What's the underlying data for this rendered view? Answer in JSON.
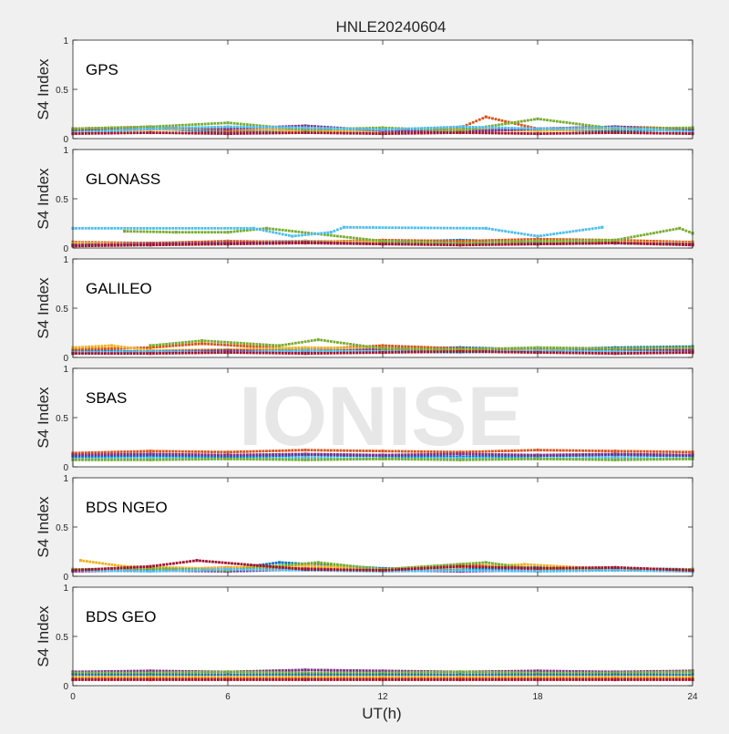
{
  "figure": {
    "title": "HNLE20240604",
    "watermark": "IONISE",
    "xlabel": "UT(h)",
    "background": "#f0f0f0",
    "axes_background": "#ffffff"
  },
  "chart_data": [
    {
      "type": "scatter",
      "panel_label": "GPS",
      "ylabel": "S4 Index",
      "xlim": [
        0,
        24
      ],
      "ylim": [
        0,
        1
      ],
      "yticks": [
        0,
        0.5,
        1
      ],
      "ytick_labels": [
        "0",
        "0.5",
        "1"
      ],
      "series": [
        {
          "color": "#0072BD",
          "x": [
            0,
            3,
            6,
            9,
            12,
            15,
            18,
            21,
            24
          ],
          "y": [
            0.08,
            0.1,
            0.07,
            0.09,
            0.08,
            0.1,
            0.09,
            0.08,
            0.09
          ]
        },
        {
          "color": "#D95319",
          "x": [
            0,
            3,
            6,
            9,
            12,
            15,
            16,
            18,
            21,
            24
          ],
          "y": [
            0.1,
            0.12,
            0.08,
            0.1,
            0.09,
            0.11,
            0.22,
            0.1,
            0.12,
            0.1
          ]
        },
        {
          "color": "#EDB120",
          "x": [
            0,
            3,
            6,
            9,
            12,
            15,
            18,
            21,
            24
          ],
          "y": [
            0.07,
            0.09,
            0.1,
            0.08,
            0.07,
            0.09,
            0.08,
            0.1,
            0.08
          ]
        },
        {
          "color": "#7E2F8E",
          "x": [
            0,
            3,
            6,
            9,
            12,
            15,
            18,
            21,
            24
          ],
          "y": [
            0.09,
            0.11,
            0.1,
            0.13,
            0.08,
            0.07,
            0.1,
            0.12,
            0.09
          ]
        },
        {
          "color": "#77AC30",
          "x": [
            0,
            3,
            6,
            9,
            12,
            15,
            18,
            21,
            24
          ],
          "y": [
            0.1,
            0.12,
            0.16,
            0.09,
            0.11,
            0.08,
            0.2,
            0.1,
            0.11
          ]
        },
        {
          "color": "#4DBEEE",
          "x": [
            0,
            3,
            6,
            9,
            12,
            15,
            18,
            21,
            24
          ],
          "y": [
            0.06,
            0.1,
            0.12,
            0.11,
            0.09,
            0.12,
            0.1,
            0.11,
            0.07
          ]
        },
        {
          "color": "#A2142F",
          "x": [
            0,
            3,
            6,
            9,
            12,
            15,
            18,
            21,
            24
          ],
          "y": [
            0.05,
            0.06,
            0.05,
            0.06,
            0.05,
            0.06,
            0.05,
            0.06,
            0.05
          ]
        }
      ]
    },
    {
      "type": "scatter",
      "panel_label": "GLONASS",
      "ylabel": "S4 Index",
      "xlim": [
        0,
        24
      ],
      "ylim": [
        0,
        1
      ],
      "yticks": [
        0,
        0.5,
        1
      ],
      "ytick_labels": [
        "0",
        "0.5",
        "1"
      ],
      "series": [
        {
          "color": "#0072BD",
          "x": [
            0,
            3,
            6,
            9,
            12,
            15,
            18,
            21,
            24
          ],
          "y": [
            0.04,
            0.05,
            0.06,
            0.07,
            0.06,
            0.08,
            0.06,
            0.05,
            0.04
          ]
        },
        {
          "color": "#D95319",
          "x": [
            0,
            3,
            6,
            9,
            12,
            15,
            18,
            21,
            24
          ],
          "y": [
            0.06,
            0.05,
            0.07,
            0.06,
            0.08,
            0.07,
            0.09,
            0.08,
            0.06
          ]
        },
        {
          "color": "#EDB120",
          "x": [
            0,
            3,
            6,
            9,
            12,
            15,
            18,
            21,
            24
          ],
          "y": [
            0.05,
            0.04,
            0.05,
            0.07,
            0.06,
            0.05,
            0.07,
            0.06,
            0.05
          ]
        },
        {
          "color": "#7E2F8E",
          "x": [
            0,
            3,
            6,
            9,
            12,
            15,
            18,
            21,
            24
          ],
          "y": [
            0.03,
            0.04,
            0.05,
            0.06,
            0.04,
            0.05,
            0.04,
            0.05,
            0.04
          ]
        },
        {
          "color": "#77AC30",
          "x": [
            2,
            4,
            6,
            7.5,
            12,
            15,
            18,
            21,
            23.5,
            24
          ],
          "y": [
            0.17,
            0.16,
            0.16,
            0.2,
            0.07,
            0.05,
            0.07,
            0.08,
            0.2,
            0.15
          ]
        },
        {
          "color": "#4DBEEE",
          "x": [
            0,
            7,
            8.5,
            10,
            10.5,
            16,
            18,
            20.5
          ],
          "y": [
            0.2,
            0.2,
            0.12,
            0.16,
            0.21,
            0.2,
            0.12,
            0.21
          ]
        },
        {
          "color": "#A2142F",
          "x": [
            0,
            3,
            6,
            9,
            12,
            15,
            18,
            21,
            24
          ],
          "y": [
            0.02,
            0.03,
            0.04,
            0.05,
            0.04,
            0.03,
            0.04,
            0.05,
            0.03
          ]
        }
      ]
    },
    {
      "type": "scatter",
      "panel_label": "GALILEO",
      "ylabel": "S4 Index",
      "xlim": [
        0,
        24
      ],
      "ylim": [
        0,
        1
      ],
      "yticks": [
        0,
        0.5,
        1
      ],
      "ytick_labels": [
        "0",
        "0.5",
        "1"
      ],
      "series": [
        {
          "color": "#0072BD",
          "x": [
            0,
            3,
            6,
            9,
            12,
            15,
            18,
            21,
            24
          ],
          "y": [
            0.07,
            0.06,
            0.08,
            0.07,
            0.09,
            0.1,
            0.08,
            0.1,
            0.11
          ]
        },
        {
          "color": "#D95319",
          "x": [
            0,
            3,
            5,
            9,
            12,
            15,
            18,
            21,
            24
          ],
          "y": [
            0.08,
            0.1,
            0.14,
            0.08,
            0.12,
            0.09,
            0.08,
            0.07,
            0.09
          ]
        },
        {
          "color": "#EDB120",
          "x": [
            0,
            1.5,
            3,
            6,
            9,
            12,
            15,
            18,
            21,
            24
          ],
          "y": [
            0.1,
            0.12,
            0.07,
            0.08,
            0.1,
            0.09,
            0.08,
            0.07,
            0.08,
            0.07
          ]
        },
        {
          "color": "#7E2F8E",
          "x": [
            0,
            3,
            6,
            9,
            12,
            15,
            18,
            21,
            24
          ],
          "y": [
            0.05,
            0.06,
            0.07,
            0.06,
            0.08,
            0.07,
            0.06,
            0.08,
            0.07
          ]
        },
        {
          "color": "#77AC30",
          "x": [
            3,
            5,
            8,
            9.5,
            12,
            15,
            18,
            21,
            24
          ],
          "y": [
            0.12,
            0.17,
            0.12,
            0.18,
            0.09,
            0.08,
            0.1,
            0.09,
            0.1
          ]
        },
        {
          "color": "#4DBEEE",
          "x": [
            0,
            3,
            6,
            9,
            12,
            15,
            18,
            21,
            24
          ],
          "y": [
            0.05,
            0.06,
            0.05,
            0.07,
            0.06,
            0.05,
            0.07,
            0.06,
            0.05
          ]
        },
        {
          "color": "#A2142F",
          "x": [
            0,
            3,
            6,
            9,
            12,
            15,
            18,
            21,
            24
          ],
          "y": [
            0.04,
            0.04,
            0.05,
            0.04,
            0.05,
            0.06,
            0.05,
            0.04,
            0.05
          ]
        }
      ]
    },
    {
      "type": "scatter",
      "panel_label": "SBAS",
      "ylabel": "S4 Index",
      "xlim": [
        0,
        24
      ],
      "ylim": [
        0,
        1
      ],
      "yticks": [
        0,
        0.5,
        1
      ],
      "ytick_labels": [
        "0",
        "0.5",
        "1"
      ],
      "series": [
        {
          "color": "#D95319",
          "x": [
            0,
            3,
            6,
            9,
            12,
            15,
            18,
            21,
            24
          ],
          "y": [
            0.14,
            0.16,
            0.15,
            0.17,
            0.16,
            0.15,
            0.17,
            0.16,
            0.15
          ]
        },
        {
          "color": "#0072BD",
          "x": [
            0,
            3,
            6,
            9,
            12,
            15,
            18,
            21,
            24
          ],
          "y": [
            0.1,
            0.11,
            0.1,
            0.12,
            0.11,
            0.1,
            0.11,
            0.12,
            0.11
          ]
        },
        {
          "color": "#4DBEEE",
          "x": [
            0,
            3,
            6,
            9,
            12,
            15,
            18,
            21,
            24
          ],
          "y": [
            0.08,
            0.09,
            0.08,
            0.09,
            0.08,
            0.09,
            0.08,
            0.09,
            0.08
          ]
        },
        {
          "color": "#77AC30",
          "x": [
            0,
            3,
            6,
            9,
            12,
            15,
            18,
            21,
            24
          ],
          "y": [
            0.07,
            0.07,
            0.08,
            0.07,
            0.08,
            0.07,
            0.08,
            0.07,
            0.08
          ]
        },
        {
          "color": "#7E2F8E",
          "x": [
            0,
            3,
            6,
            9,
            12,
            15,
            18,
            21,
            24
          ],
          "y": [
            0.12,
            0.13,
            0.12,
            0.13,
            0.12,
            0.13,
            0.12,
            0.13,
            0.12
          ]
        }
      ]
    },
    {
      "type": "scatter",
      "panel_label": "BDS NGEO",
      "ylabel": "S4 Index",
      "xlim": [
        0,
        24
      ],
      "ylim": [
        0,
        1
      ],
      "yticks": [
        0,
        0.5,
        1
      ],
      "ytick_labels": [
        "0",
        "0.5",
        "1"
      ],
      "series": [
        {
          "color": "#0072BD",
          "x": [
            0,
            3,
            6,
            8,
            12,
            15,
            18,
            21,
            24
          ],
          "y": [
            0.06,
            0.08,
            0.07,
            0.14,
            0.08,
            0.07,
            0.09,
            0.08,
            0.07
          ]
        },
        {
          "color": "#D95319",
          "x": [
            0,
            3,
            6,
            9,
            12,
            15,
            18,
            21,
            24
          ],
          "y": [
            0.07,
            0.06,
            0.09,
            0.08,
            0.07,
            0.12,
            0.08,
            0.07,
            0.06
          ]
        },
        {
          "color": "#EDB120",
          "x": [
            0.3,
            2,
            5,
            9,
            12,
            15,
            17.5,
            21,
            24
          ],
          "y": [
            0.16,
            0.1,
            0.08,
            0.11,
            0.07,
            0.09,
            0.12,
            0.07,
            0.06
          ]
        },
        {
          "color": "#7E2F8E",
          "x": [
            0,
            3,
            6,
            9,
            12,
            15,
            18,
            21,
            24
          ],
          "y": [
            0.05,
            0.06,
            0.05,
            0.07,
            0.06,
            0.05,
            0.06,
            0.07,
            0.05
          ]
        },
        {
          "color": "#77AC30",
          "x": [
            0,
            3,
            6,
            9.5,
            12,
            16,
            18,
            21,
            24
          ],
          "y": [
            0.07,
            0.08,
            0.06,
            0.14,
            0.07,
            0.14,
            0.07,
            0.06,
            0.07
          ]
        },
        {
          "color": "#4DBEEE",
          "x": [
            0,
            3,
            6,
            9,
            12,
            15,
            18,
            21,
            24
          ],
          "y": [
            0.06,
            0.05,
            0.07,
            0.06,
            0.05,
            0.06,
            0.05,
            0.06,
            0.05
          ]
        },
        {
          "color": "#A2142F",
          "x": [
            0,
            3,
            4.8,
            9,
            12,
            15,
            18,
            21,
            24
          ],
          "y": [
            0.06,
            0.1,
            0.16,
            0.07,
            0.06,
            0.1,
            0.08,
            0.09,
            0.06
          ]
        }
      ]
    },
    {
      "type": "scatter",
      "panel_label": "BDS GEO",
      "ylabel": "S4 Index",
      "xlim": [
        0,
        24
      ],
      "ylim": [
        0,
        1
      ],
      "yticks": [
        0,
        0.5,
        1
      ],
      "ytick_labels": [
        "0",
        "0.5",
        "1"
      ],
      "xticks": [
        0,
        6,
        12,
        18,
        24
      ],
      "xtick_labels": [
        "0",
        "6",
        "12",
        "18",
        "24"
      ],
      "series": [
        {
          "color": "#7E2F8E",
          "x": [
            0,
            3,
            6,
            9,
            12,
            15,
            18,
            21,
            24
          ],
          "y": [
            0.14,
            0.15,
            0.14,
            0.16,
            0.15,
            0.14,
            0.15,
            0.14,
            0.15
          ]
        },
        {
          "color": "#77AC30",
          "x": [
            0,
            3,
            6,
            9,
            12,
            15,
            18,
            21,
            24
          ],
          "y": [
            0.13,
            0.13,
            0.14,
            0.13,
            0.13,
            0.14,
            0.13,
            0.13,
            0.14
          ]
        },
        {
          "color": "#0072BD",
          "x": [
            0,
            3,
            6,
            9,
            12,
            15,
            18,
            21,
            24
          ],
          "y": [
            0.11,
            0.11,
            0.11,
            0.11,
            0.11,
            0.11,
            0.11,
            0.11,
            0.11
          ]
        },
        {
          "color": "#EDB120",
          "x": [
            0,
            3,
            6,
            9,
            12,
            15,
            18,
            21,
            24
          ],
          "y": [
            0.09,
            0.09,
            0.09,
            0.09,
            0.09,
            0.09,
            0.09,
            0.09,
            0.09
          ]
        },
        {
          "color": "#D95319",
          "x": [
            0,
            3,
            6,
            9,
            12,
            15,
            18,
            21,
            24
          ],
          "y": [
            0.07,
            0.07,
            0.07,
            0.07,
            0.07,
            0.07,
            0.07,
            0.07,
            0.07
          ]
        },
        {
          "color": "#A2142F",
          "x": [
            0,
            3,
            6,
            9,
            12,
            15,
            18,
            21,
            24
          ],
          "y": [
            0.06,
            0.06,
            0.06,
            0.06,
            0.06,
            0.06,
            0.06,
            0.06,
            0.06
          ]
        }
      ]
    }
  ]
}
